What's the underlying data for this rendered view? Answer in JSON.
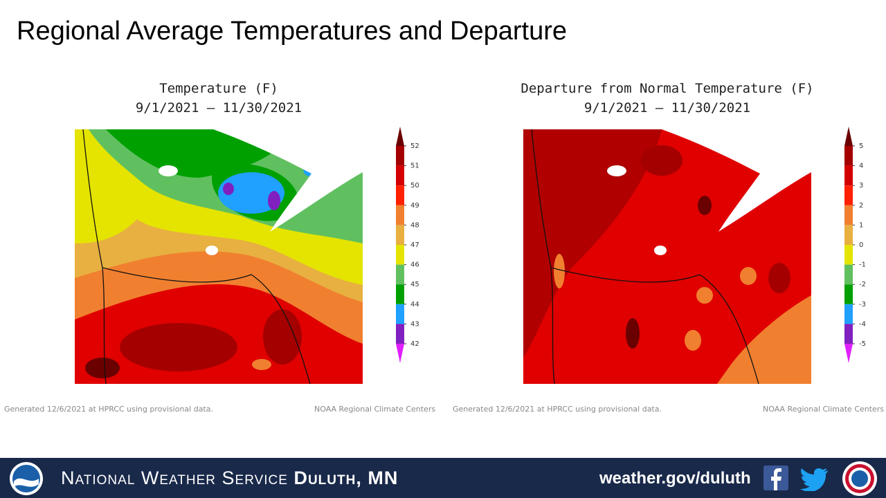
{
  "title": "Regional Average Temperatures and Departure",
  "panels": [
    {
      "title": "Temperature (F)",
      "period": "9/1/2021 – 11/30/2021",
      "legend": {
        "ticks": [
          52,
          51,
          50,
          49,
          48,
          47,
          46,
          45,
          44,
          43,
          42
        ],
        "colors": [
          "#6b0000",
          "#a50000",
          "#d40000",
          "#ff2000",
          "#f08030",
          "#e8b040",
          "#e4e400",
          "#60c060",
          "#00a000",
          "#20a0ff",
          "#8020c0",
          "#e020ff"
        ]
      },
      "footer_left": "Generated 12/6/2021 at HPRCC using provisional data.",
      "footer_right": "NOAA Regional Climate Centers"
    },
    {
      "title": "Departure from Normal Temperature (F)",
      "period": "9/1/2021 – 11/30/2021",
      "legend": {
        "ticks": [
          5,
          4,
          3,
          2,
          1,
          0,
          -1,
          -2,
          -3,
          -4,
          -5
        ],
        "colors": [
          "#6b0000",
          "#a50000",
          "#d40000",
          "#ff2000",
          "#f08030",
          "#e8b040",
          "#e4e400",
          "#60c060",
          "#00a000",
          "#20a0ff",
          "#8020c0",
          "#e020ff"
        ]
      },
      "footer_left": "Generated 12/6/2021 at HPRCC using provisional data.",
      "footer_right": "NOAA Regional Climate Centers"
    }
  ],
  "banner": {
    "agency": "National Weather Service",
    "office": "Duluth, MN",
    "url": "weather.gov/duluth"
  }
}
